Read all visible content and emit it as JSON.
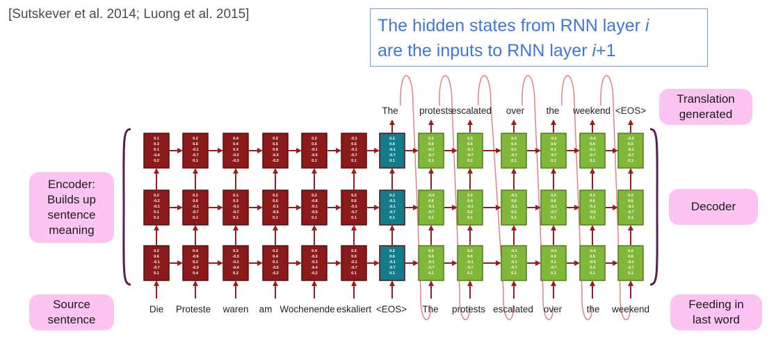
{
  "citation": "[Sutskever et al. 2014; Luong et al. 2015]",
  "callout": {
    "line1_pre": "The hidden states from RNN layer ",
    "line1_var": "i",
    "line2_pre": "are the inputs to RNN layer ",
    "line2_var": "i",
    "line2_post": "+1"
  },
  "labels": {
    "encoder": [
      "Encoder:",
      "Builds up",
      "sentence",
      "meaning"
    ],
    "source": [
      "Source",
      "sentence"
    ],
    "translation": [
      "Translation",
      "generated"
    ],
    "decoder": [
      "Decoder"
    ],
    "feeding": [
      "Feeding in",
      "last word"
    ]
  },
  "source_words": [
    "Die",
    "Proteste",
    "waren",
    "am",
    "Wochenende",
    "eskaliert",
    "<EOS>"
  ],
  "feed_words": [
    "The",
    "protests",
    "escalated",
    "over",
    "the",
    "weekend"
  ],
  "output_words": [
    "The",
    "protests",
    "escalated",
    "over",
    "the",
    "weekend",
    "<EOS>"
  ],
  "colors": {
    "encoder_cell": "#8b1a1a",
    "encoder_border": "#5c0c0c",
    "eos_cell": "#137c8a",
    "decoder_cell": "#82b83a",
    "decoder_border": "#4f7d1f",
    "arrow": "#9b1c1c",
    "loop": "#e07b7b",
    "brace": "#5b1f4e",
    "pink": "#fbc4f2"
  },
  "vectors": [
    [
      [
        "0.1",
        "0.3",
        "0.1",
        "-0.4",
        "0.2"
      ],
      [
        "0.2",
        "-0.2",
        "-0.1",
        "0.1",
        "0.1"
      ],
      [
        "0.2",
        "0.6",
        "-0.1",
        "-0.7",
        "0.1"
      ]
    ],
    [
      [
        "0.2",
        "0.6",
        "-0.1",
        "-0.7",
        "0.1"
      ],
      [
        "0.2",
        "0.6",
        "-0.1",
        "-0.7",
        "0.1"
      ],
      [
        "0.4",
        "-0.6",
        "0.2",
        "-0.3",
        "0.4"
      ]
    ],
    [
      [
        "0.4",
        "0.4",
        "0.3",
        "-0.2",
        "-0.3"
      ],
      [
        "0.1",
        "0.3",
        "-0.1",
        "-0.7",
        "0.1"
      ],
      [
        "0.2",
        "-0.3",
        "-0.1",
        "-0.4",
        "0.2"
      ]
    ],
    [
      [
        "0.5",
        "0.5",
        "0.9",
        "-0.3",
        "-0.2"
      ],
      [
        "0.2",
        "0.6",
        "-0.1",
        "-0.5",
        "0.1"
      ],
      [
        "0.2",
        "0.4",
        "0.1",
        "-0.5",
        "-0.2"
      ]
    ],
    [
      [
        "0.2",
        "0.6",
        "-0.1",
        "-0.5",
        "0.1"
      ],
      [
        "0.2",
        "-0.8",
        "-0.1",
        "-0.5",
        "0.1"
      ],
      [
        "0.4",
        "-0.2",
        "-0.3",
        "-0.4",
        "-0.2"
      ]
    ],
    [
      [
        "-0.1",
        "0.6",
        "-0.1",
        "-0.7",
        "0.1"
      ],
      [
        "0.2",
        "0.6",
        "-0.1",
        "-0.7",
        "0.1"
      ],
      [
        "0.2",
        "0.6",
        "-0.1",
        "-0.7",
        "0.1"
      ]
    ],
    [
      [
        "0.2",
        "0.6",
        "-0.1",
        "-0.7",
        "0.1"
      ],
      [
        "0.2",
        "-0.1",
        "-0.1",
        "-0.7",
        "0.1"
      ],
      [
        "0.2",
        "0.6",
        "-0.1",
        "-0.7",
        "0.1"
      ]
    ],
    [
      [
        "0.2",
        "0.6",
        "-0.1",
        "-0.7",
        "0.1"
      ],
      [
        "-0.4",
        "0.6",
        "-0.1",
        "-0.7",
        "0.1"
      ],
      [
        "0.2",
        "0.6",
        "-0.1",
        "-0.7",
        "0.1"
      ]
    ],
    [
      [
        "0.3",
        "0.6",
        "-0.1",
        "-0.7",
        "0.1"
      ],
      [
        "0.2",
        "0.4",
        "-0.1",
        "0.2",
        "0.1"
      ],
      [
        "0.2",
        "0.6",
        "-0.1",
        "-0.7",
        "0.1"
      ]
    ],
    [
      [
        "0.2",
        "0.4",
        "0.1",
        "-0.7",
        "0.1"
      ],
      [
        "-0.1",
        "0.6",
        "-0.1",
        "0.3",
        "0.1"
      ],
      [
        "-0.1",
        "0.3",
        "-0.1",
        "-0.7",
        "0.1"
      ]
    ],
    [
      [
        "-0.2",
        "0.6",
        "0.1",
        "-0.7",
        "0.1"
      ],
      [
        "0.2",
        "0.6",
        "-0.1",
        "-0.7",
        "0.1"
      ],
      [
        "-0.2",
        "0.6",
        "0.1",
        "-0.7",
        "0.1"
      ]
    ],
    [
      [
        "-0.4",
        "0.6",
        "-0.1",
        "-0.7",
        "0.1"
      ],
      [
        "0.3",
        "0.6",
        "-0.1",
        "-0.5",
        "0.1"
      ],
      [
        "-0.4",
        "0.5",
        "-0.5",
        "0.4",
        "0.1"
      ]
    ],
    [
      [
        "-0.3",
        "0.5",
        "-0.1",
        "-0.7",
        "0.1"
      ],
      [
        "0.2",
        "0.6",
        "-0.1",
        "-0.7",
        "0.1"
      ],
      [
        "0.2",
        "0.6",
        "-0.1",
        "-0.7",
        "0.1"
      ]
    ]
  ]
}
